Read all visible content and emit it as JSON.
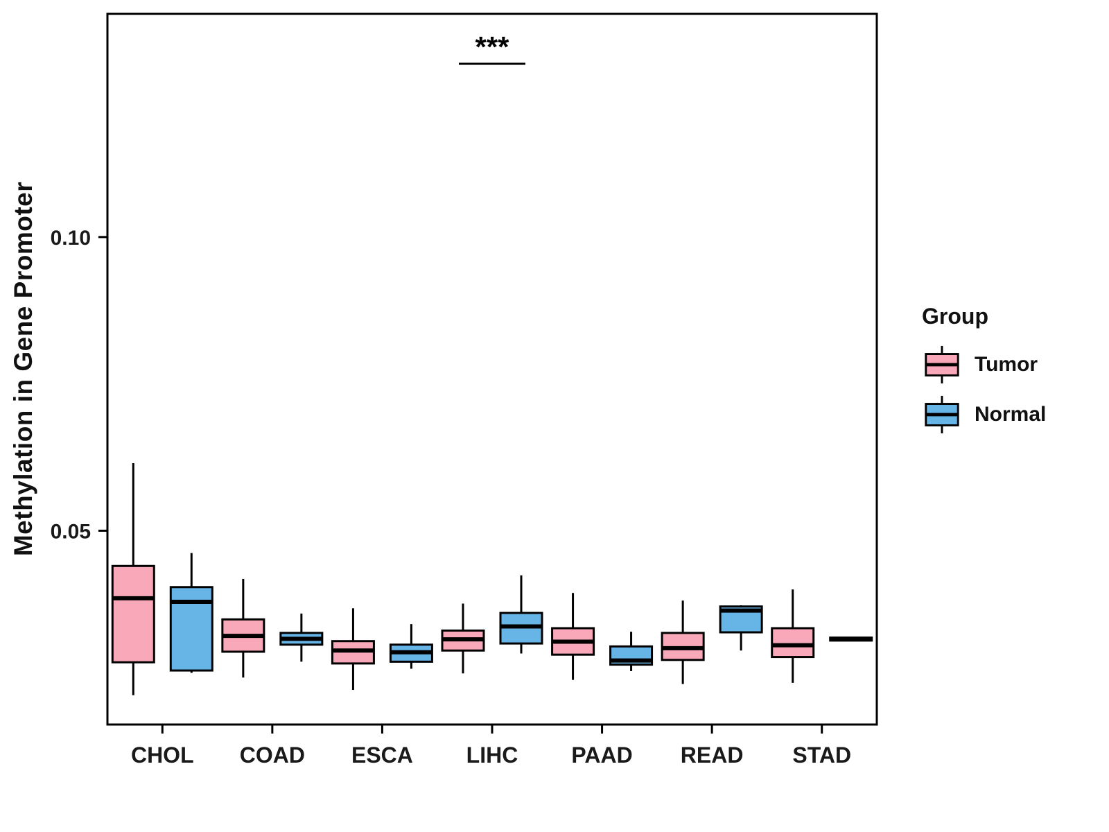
{
  "chart_data": {
    "type": "boxplot",
    "title": "",
    "xlabel": "",
    "ylabel": "Methylation in Gene Promoter",
    "legend_title": "Group",
    "categories": [
      "CHOL",
      "COAD",
      "ESCA",
      "LIHC",
      "PAAD",
      "READ",
      "STAD"
    ],
    "groups": [
      {
        "name": "Tumor",
        "color": "#F8A8B8"
      },
      {
        "name": "Normal",
        "color": "#67B4E7"
      }
    ],
    "yticks": [
      0.05,
      0.1
    ],
    "ylim": [
      0.017,
      0.138
    ],
    "grid": false,
    "legend_position": "right",
    "significance": {
      "category": "LIHC",
      "label": "***",
      "bar_y": 0.1295
    },
    "series": [
      {
        "name": "Tumor",
        "boxes": [
          {
            "category": "CHOL",
            "whisker_low": 0.022,
            "q1": 0.0276,
            "median": 0.0385,
            "q3": 0.044,
            "whisker_high": 0.0615
          },
          {
            "category": "COAD",
            "whisker_low": 0.025,
            "q1": 0.0294,
            "median": 0.0321,
            "q3": 0.0349,
            "whisker_high": 0.0418
          },
          {
            "category": "ESCA",
            "whisker_low": 0.0229,
            "q1": 0.0274,
            "median": 0.0296,
            "q3": 0.0312,
            "whisker_high": 0.0368
          },
          {
            "category": "LIHC",
            "whisker_low": 0.0257,
            "q1": 0.0296,
            "median": 0.0315,
            "q3": 0.033,
            "whisker_high": 0.0376
          },
          {
            "category": "PAAD",
            "whisker_low": 0.0246,
            "q1": 0.0289,
            "median": 0.0311,
            "q3": 0.0334,
            "whisker_high": 0.0394
          },
          {
            "category": "READ",
            "whisker_low": 0.0239,
            "q1": 0.028,
            "median": 0.03,
            "q3": 0.0326,
            "whisker_high": 0.0381
          },
          {
            "category": "STAD",
            "whisker_low": 0.0241,
            "q1": 0.0285,
            "median": 0.0305,
            "q3": 0.0334,
            "whisker_high": 0.04
          }
        ]
      },
      {
        "name": "Normal",
        "boxes": [
          {
            "category": "CHOL",
            "whisker_low": 0.0258,
            "q1": 0.0262,
            "median": 0.0379,
            "q3": 0.0404,
            "whisker_high": 0.0462
          },
          {
            "category": "COAD",
            "whisker_low": 0.0277,
            "q1": 0.0306,
            "median": 0.0316,
            "q3": 0.0326,
            "whisker_high": 0.0359
          },
          {
            "category": "ESCA",
            "whisker_low": 0.0265,
            "q1": 0.0277,
            "median": 0.0293,
            "q3": 0.0306,
            "whisker_high": 0.0341
          },
          {
            "category": "LIHC",
            "whisker_low": 0.0291,
            "q1": 0.0308,
            "median": 0.0337,
            "q3": 0.036,
            "whisker_high": 0.0424
          },
          {
            "category": "PAAD",
            "whisker_low": 0.0261,
            "q1": 0.0272,
            "median": 0.0279,
            "q3": 0.0303,
            "whisker_high": 0.0328
          },
          {
            "category": "READ",
            "whisker_low": 0.0296,
            "q1": 0.0327,
            "median": 0.0364,
            "q3": 0.0371,
            "whisker_high": 0.0373
          },
          {
            "category": "STAD",
            "whisker_low": 0.0312,
            "q1": 0.0313,
            "median": 0.0315,
            "q3": 0.0318,
            "whisker_high": 0.0318
          }
        ]
      }
    ]
  }
}
